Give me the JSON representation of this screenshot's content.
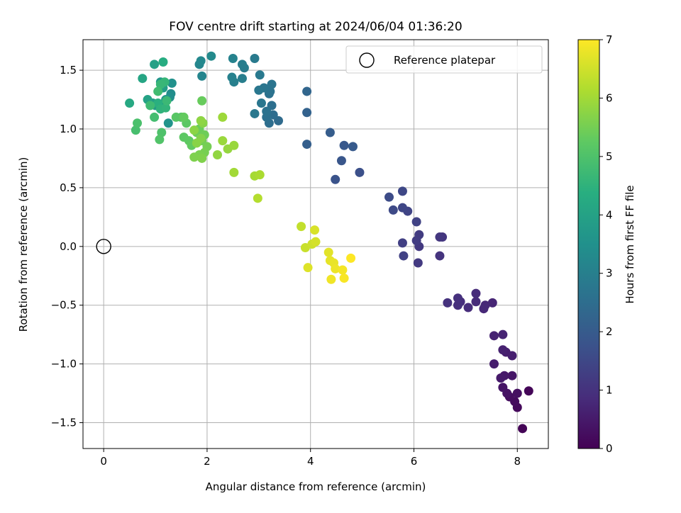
{
  "chart_data": {
    "type": "scatter",
    "title": "FOV centre drift starting at 2024/06/04 01:36:20",
    "xlabel": "Angular distance from reference (arcmin)",
    "ylabel": "Rotation from reference (arcmin)",
    "xlim": [
      -0.4,
      8.6
    ],
    "ylim": [
      -1.72,
      1.76
    ],
    "x_ticks": [
      0,
      2,
      4,
      6,
      8
    ],
    "y_ticks": [
      -1.5,
      -1.0,
      -0.5,
      0.0,
      0.5,
      1.0,
      1.5
    ],
    "x_tick_labels": [
      "0",
      "2",
      "4",
      "6",
      "8"
    ],
    "y_tick_labels": [
      "−1.5",
      "−1.0",
      "−0.5",
      "0.0",
      "0.5",
      "1.0",
      "1.5"
    ],
    "grid": true,
    "legend_position": "top-right",
    "reference": {
      "label": "Reference platepar",
      "x": 0,
      "y": 0
    },
    "colorbar": {
      "label": "Hours from first FF file",
      "range": [
        0,
        7
      ],
      "ticks": [
        "0",
        "1",
        "2",
        "3",
        "4",
        "5",
        "6",
        "7"
      ],
      "colormap": "viridis"
    },
    "points": [
      [
        8.1,
        -1.55,
        0.05
      ],
      [
        8.22,
        -1.23,
        0.1
      ],
      [
        8.0,
        -1.37,
        0.15
      ],
      [
        7.95,
        -1.32,
        0.2
      ],
      [
        7.85,
        -1.28,
        0.25
      ],
      [
        8.0,
        -1.25,
        0.3
      ],
      [
        7.8,
        -1.25,
        0.33
      ],
      [
        7.72,
        -1.2,
        0.38
      ],
      [
        7.9,
        -1.1,
        0.42
      ],
      [
        7.75,
        -1.1,
        0.46
      ],
      [
        7.68,
        -1.12,
        0.5
      ],
      [
        7.55,
        -1.0,
        0.55
      ],
      [
        7.78,
        -0.9,
        0.58
      ],
      [
        7.9,
        -0.93,
        0.6
      ],
      [
        7.72,
        -0.88,
        0.63
      ],
      [
        7.55,
        -0.76,
        0.67
      ],
      [
        7.72,
        -0.75,
        0.7
      ],
      [
        7.52,
        -0.48,
        0.74
      ],
      [
        7.38,
        -0.5,
        0.78
      ],
      [
        7.35,
        -0.53,
        0.8
      ],
      [
        7.2,
        -0.47,
        0.83
      ],
      [
        7.2,
        -0.4,
        0.86
      ],
      [
        7.05,
        -0.52,
        0.88
      ],
      [
        6.9,
        -0.47,
        0.91
      ],
      [
        6.85,
        -0.5,
        0.94
      ],
      [
        6.85,
        -0.44,
        0.97
      ],
      [
        6.65,
        -0.48,
        1.0
      ],
      [
        6.5,
        -0.08,
        1.05
      ],
      [
        6.55,
        0.08,
        1.08
      ],
      [
        6.5,
        0.08,
        1.12
      ],
      [
        6.1,
        0.0,
        1.15
      ],
      [
        6.08,
        -0.14,
        1.18
      ],
      [
        6.1,
        0.1,
        1.22
      ],
      [
        6.05,
        0.05,
        1.26
      ],
      [
        5.78,
        0.03,
        1.3
      ],
      [
        5.8,
        -0.08,
        1.34
      ],
      [
        6.05,
        0.21,
        1.38
      ],
      [
        5.88,
        0.3,
        1.42
      ],
      [
        5.78,
        0.33,
        1.46
      ],
      [
        5.78,
        0.47,
        1.5
      ],
      [
        5.6,
        0.31,
        1.55
      ],
      [
        5.52,
        0.42,
        1.6
      ],
      [
        4.95,
        0.63,
        1.7
      ],
      [
        4.48,
        0.57,
        1.78
      ],
      [
        4.6,
        0.73,
        1.85
      ],
      [
        4.65,
        0.86,
        1.92
      ],
      [
        4.82,
        0.85,
        1.98
      ],
      [
        4.38,
        0.97,
        2.05
      ],
      [
        3.93,
        0.87,
        2.1
      ],
      [
        3.93,
        1.14,
        2.2
      ],
      [
        3.93,
        1.32,
        2.3
      ],
      [
        3.38,
        1.07,
        2.42
      ],
      [
        3.28,
        1.12,
        2.48
      ],
      [
        3.2,
        1.05,
        2.52
      ],
      [
        3.25,
        1.2,
        2.55
      ],
      [
        3.15,
        1.1,
        2.58
      ],
      [
        3.2,
        1.3,
        2.6
      ],
      [
        3.15,
        1.15,
        2.62
      ],
      [
        3.22,
        1.32,
        2.65
      ],
      [
        3.25,
        1.38,
        2.68
      ],
      [
        3.1,
        1.35,
        2.72
      ],
      [
        3.05,
        1.22,
        2.75
      ],
      [
        3.0,
        1.33,
        2.78
      ],
      [
        2.92,
        1.13,
        2.8
      ],
      [
        3.02,
        1.46,
        2.83
      ],
      [
        2.92,
        1.6,
        2.86
      ],
      [
        2.72,
        1.52,
        2.9
      ],
      [
        2.68,
        1.55,
        2.93
      ],
      [
        2.68,
        1.43,
        2.96
      ],
      [
        2.52,
        1.4,
        3.0
      ],
      [
        2.48,
        1.44,
        3.04
      ],
      [
        2.5,
        1.6,
        3.08
      ],
      [
        1.9,
        1.45,
        3.15
      ],
      [
        1.85,
        1.55,
        3.2
      ],
      [
        1.88,
        1.58,
        3.25
      ],
      [
        2.08,
        1.62,
        3.3
      ],
      [
        1.3,
        1.3,
        3.4
      ],
      [
        1.28,
        1.27,
        3.45
      ],
      [
        1.32,
        1.39,
        3.5
      ],
      [
        1.15,
        1.21,
        3.55
      ],
      [
        1.25,
        1.05,
        3.6
      ],
      [
        1.1,
        1.4,
        3.65
      ],
      [
        1.2,
        1.25,
        3.7
      ],
      [
        1.05,
        1.2,
        3.75
      ],
      [
        1.0,
        1.2,
        3.8
      ],
      [
        0.95,
        1.22,
        3.85
      ],
      [
        1.15,
        1.35,
        3.9
      ],
      [
        0.98,
        1.55,
        3.95
      ],
      [
        0.85,
        1.25,
        4.0
      ],
      [
        0.75,
        1.43,
        4.1
      ],
      [
        0.5,
        1.22,
        4.2
      ],
      [
        1.15,
        1.57,
        4.3
      ],
      [
        1.05,
        1.22,
        4.4
      ],
      [
        1.1,
        1.17,
        4.5
      ],
      [
        1.2,
        1.18,
        4.55
      ],
      [
        1.18,
        1.4,
        4.6
      ],
      [
        1.1,
        1.38,
        4.65
      ],
      [
        1.22,
        1.24,
        4.7
      ],
      [
        0.9,
        1.2,
        4.75
      ],
      [
        1.05,
        1.32,
        4.8
      ],
      [
        0.98,
        1.1,
        4.85
      ],
      [
        0.62,
        0.99,
        4.9
      ],
      [
        0.65,
        1.05,
        4.95
      ],
      [
        1.12,
        0.97,
        5.0
      ],
      [
        1.08,
        0.91,
        5.05
      ],
      [
        1.5,
        1.1,
        5.1
      ],
      [
        1.4,
        1.1,
        5.15
      ],
      [
        1.6,
        1.05,
        5.2
      ],
      [
        1.55,
        0.93,
        5.22
      ],
      [
        1.65,
        0.9,
        5.25
      ],
      [
        1.7,
        0.86,
        5.28
      ],
      [
        1.55,
        1.1,
        5.3
      ],
      [
        1.9,
        1.24,
        5.35
      ],
      [
        1.85,
        1.0,
        5.38
      ],
      [
        1.8,
        0.97,
        5.4
      ],
      [
        1.95,
        0.95,
        5.43
      ],
      [
        1.9,
        0.9,
        5.46
      ],
      [
        2.0,
        0.85,
        5.5
      ],
      [
        1.95,
        0.8,
        5.53
      ],
      [
        1.85,
        0.78,
        5.56
      ],
      [
        1.75,
        0.76,
        5.6
      ],
      [
        1.9,
        0.75,
        5.63
      ],
      [
        1.88,
        0.92,
        5.66
      ],
      [
        1.92,
        1.05,
        5.7
      ],
      [
        1.8,
        0.88,
        5.72
      ],
      [
        1.75,
        0.99,
        5.75
      ],
      [
        1.88,
        1.07,
        5.78
      ],
      [
        2.2,
        0.78,
        5.82
      ],
      [
        2.4,
        0.83,
        5.86
      ],
      [
        2.52,
        0.86,
        5.9
      ],
      [
        2.3,
        0.9,
        5.92
      ],
      [
        2.3,
        1.1,
        5.95
      ],
      [
        2.52,
        0.63,
        6.0
      ],
      [
        2.92,
        0.6,
        6.05
      ],
      [
        3.02,
        0.61,
        6.1
      ],
      [
        2.98,
        0.41,
        6.2
      ],
      [
        3.82,
        0.17,
        6.35
      ],
      [
        3.9,
        -0.01,
        6.42
      ],
      [
        4.03,
        0.02,
        6.48
      ],
      [
        4.1,
        0.04,
        6.55
      ],
      [
        4.08,
        0.14,
        6.6
      ],
      [
        3.95,
        -0.18,
        6.65
      ],
      [
        4.35,
        -0.05,
        6.7
      ],
      [
        4.38,
        -0.12,
        6.74
      ],
      [
        4.45,
        -0.14,
        6.78
      ],
      [
        4.48,
        -0.19,
        6.82
      ],
      [
        4.4,
        -0.28,
        6.86
      ],
      [
        4.62,
        -0.2,
        6.9
      ],
      [
        4.65,
        -0.27,
        6.95
      ],
      [
        4.78,
        -0.1,
        7.0
      ]
    ]
  }
}
